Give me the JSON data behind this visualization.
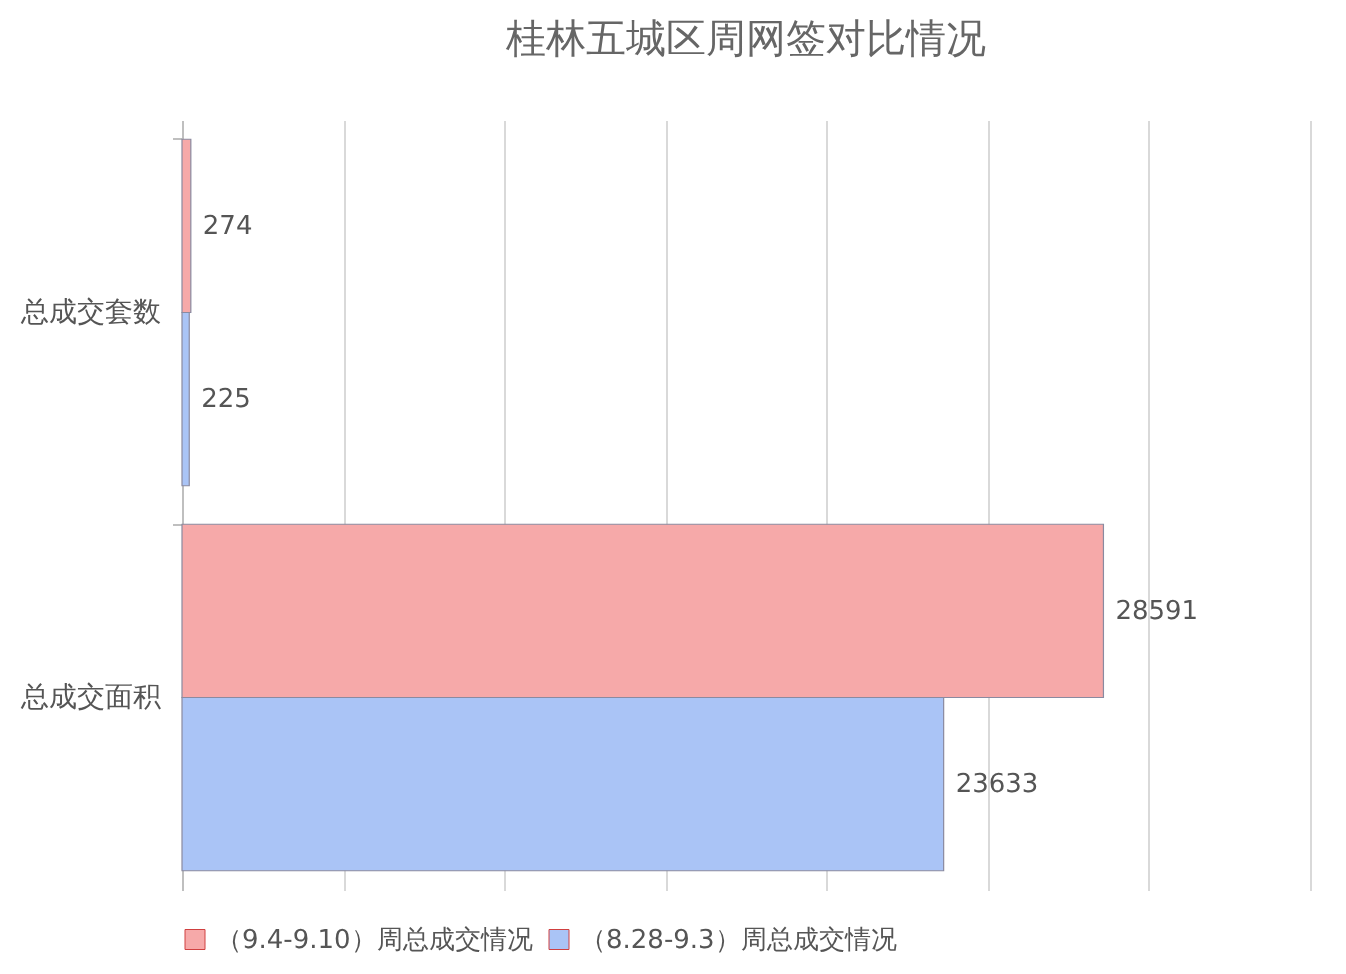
{
  "chart_data": {
    "type": "bar",
    "orientation": "horizontal",
    "title": "桂林五城区周网签对比情况",
    "categories": [
      "总成交套数",
      "总成交面积"
    ],
    "series": [
      {
        "name": "（9.4-9.10）周总成交情况",
        "color": "#f6a9a9",
        "values": [
          274,
          28591
        ]
      },
      {
        "name": "（8.28-9.3）周总成交情况",
        "color": "#aac4f6",
        "values": [
          225,
          23633
        ]
      }
    ],
    "xlim": [
      0,
      35000
    ],
    "xticks": [
      {
        "value": 0,
        "label": null
      },
      {
        "value": 5000,
        "label": null
      },
      {
        "value": 10000,
        "label": null
      },
      {
        "value": 15000,
        "label": null
      },
      {
        "value": 20000,
        "label": null
      },
      {
        "value": 25000,
        "label": null
      },
      {
        "value": 30000,
        "label": null
      },
      {
        "value": 35000,
        "label": null
      }
    ],
    "tick_labels": "y",
    "grid": "x",
    "legend": "bottom",
    "data_labels": true
  }
}
